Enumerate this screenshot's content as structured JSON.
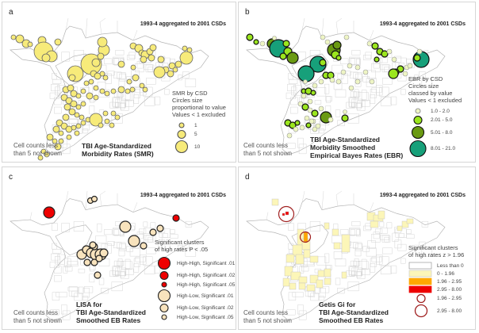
{
  "panels": [
    {
      "id": "a",
      "label": "a",
      "subtitle": "1993-4 aggregated to 2001 CSDs",
      "title_lines": [
        "TBI Age-Standardized",
        "Morbidity Rates (SMR)"
      ],
      "note_lines": [
        "Cell counts less",
        "than 5 not shown"
      ],
      "legend": {
        "title_lines": [
          "SMR by CSD",
          "Circles size",
          "proportional to value",
          "Values < 1 excluded"
        ],
        "items": [
          {
            "label": "1",
            "type": "circle",
            "fill": "#f7eb7a",
            "stroke": "#555555",
            "size": "small"
          },
          {
            "label": "5",
            "type": "circle",
            "fill": "#f7eb7a",
            "stroke": "#555555",
            "size": "medium"
          },
          {
            "label": "10",
            "type": "circle",
            "fill": "#f7eb7a",
            "stroke": "#555555",
            "size": "large"
          }
        ]
      }
    },
    {
      "id": "b",
      "label": "b",
      "subtitle": "1993-4 aggregated to 2001 CSDs",
      "title_lines": [
        "TBI Age-Standardized",
        "Morbidity Smoothed",
        "Empirical Bayes Rates (EBR)"
      ],
      "note_lines": [
        "Cell counts less",
        "than 5 not shown"
      ],
      "legend": {
        "title_lines": [
          "EBR by CSD",
          "Circles size",
          "classed by value",
          "Values < 1 excluded"
        ],
        "items": [
          {
            "label": "1.0 - 2.0",
            "type": "circle",
            "fill": "#eef5c4",
            "stroke": "#999999",
            "size": "small"
          },
          {
            "label": "2.01 - 5.0",
            "type": "circle",
            "fill": "#9be61e",
            "stroke": "#111111",
            "size": "medium"
          },
          {
            "label": "5.01 - 8.0",
            "type": "circle",
            "fill": "#6a9a12",
            "stroke": "#111111",
            "size": "large"
          },
          {
            "label": "8.01 - 21.0",
            "type": "circle",
            "fill": "#17a07a",
            "stroke": "#111111",
            "size": "xlarge"
          }
        ]
      }
    },
    {
      "id": "c",
      "label": "c",
      "subtitle": "1993-4 aggregated to 2001 CSDs",
      "title_lines": [
        "LISA for",
        "TBI Age-Standardized",
        "Smoothed EB Rates"
      ],
      "note_lines": [
        "Cell counts less",
        "than 5 not shown"
      ],
      "legend": {
        "title_lines": [
          "Significant clusters",
          "of high rates P < .05"
        ],
        "items": [
          {
            "label": "High-High, Significant .01",
            "type": "circle",
            "fill": "#ee0000",
            "stroke": "#222222",
            "size": "large"
          },
          {
            "label": "High-High, Significant .02",
            "type": "circle",
            "fill": "#ee0000",
            "stroke": "#222222",
            "size": "medium"
          },
          {
            "label": "High-High, Significant .05",
            "type": "circle",
            "fill": "#ee0000",
            "stroke": "#222222",
            "size": "small"
          },
          {
            "label": "High-Low, Significant .01",
            "type": "circle",
            "fill": "#f8e3bd",
            "stroke": "#222222",
            "size": "large"
          },
          {
            "label": "High-Low, Significant .02",
            "type": "circle",
            "fill": "#f8e3bd",
            "stroke": "#222222",
            "size": "medium"
          },
          {
            "label": "High-Low, Significant .05",
            "type": "circle",
            "fill": "#f8e3bd",
            "stroke": "#222222",
            "size": "small"
          }
        ]
      }
    },
    {
      "id": "d",
      "label": "d",
      "subtitle": "1993-4 aggregated to 2001 CSDs",
      "title_lines": [
        "Getis Gi for",
        "TBI Age-Standardized",
        "Smoothed EB Rates"
      ],
      "note_lines": [
        "Cell counts less",
        "than 5 not shown"
      ],
      "legend": {
        "title_lines": [
          "Significant clusters",
          "of high rates z > 1.96"
        ],
        "items": [
          {
            "label": "Less than 0",
            "type": "box",
            "fill": "#ffffff",
            "stroke": "#999999"
          },
          {
            "label": "0 - 1.96",
            "type": "box",
            "fill": "#fcf6b8",
            "stroke": "#cccccc"
          },
          {
            "label": "1.96 - 2.95",
            "type": "box",
            "fill": "#ffa800",
            "stroke": "#ffa800"
          },
          {
            "label": "2.95 - 8.00",
            "type": "box",
            "fill": "#ee0000",
            "stroke": "#ee0000"
          },
          {
            "label": "1.96 - 2.95",
            "type": "ring",
            "fill": "none",
            "stroke": "#a02020",
            "size": "medium"
          },
          {
            "label": "2.95 - 8.00",
            "type": "ring",
            "fill": "none",
            "stroke": "#a02020",
            "size": "large"
          }
        ]
      }
    }
  ]
}
